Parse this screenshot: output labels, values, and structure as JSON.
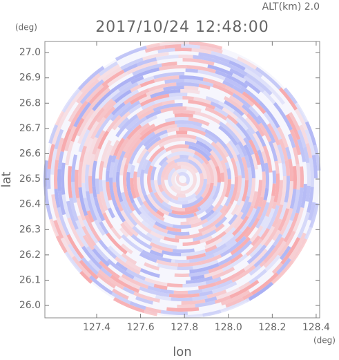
{
  "chart_data": {
    "type": "ppi",
    "title": "2017/10/24 12:48:00",
    "subtitle": "ALT(km) 2.0",
    "x_label": "lon",
    "y_label": "lat",
    "x_unit": "(deg)",
    "y_unit": "(deg)",
    "xlim": [
      127.164,
      128.416
    ],
    "ylim": [
      25.951,
      27.044
    ],
    "xticks": [
      127.4,
      127.6,
      127.8,
      {
        "value": 128.0,
        "label": "128.0"
      },
      128.2,
      128.4
    ],
    "yticks": [
      {
        "value": 26.0,
        "label": "26.0"
      },
      26.1,
      26.2,
      26.3,
      26.4,
      26.5,
      26.6,
      26.7,
      26.8,
      26.9,
      {
        "value": 27.0,
        "label": "27.0"
      }
    ],
    "colors": [
      "#f7a8ab",
      "#aab0f4"
    ]
  }
}
